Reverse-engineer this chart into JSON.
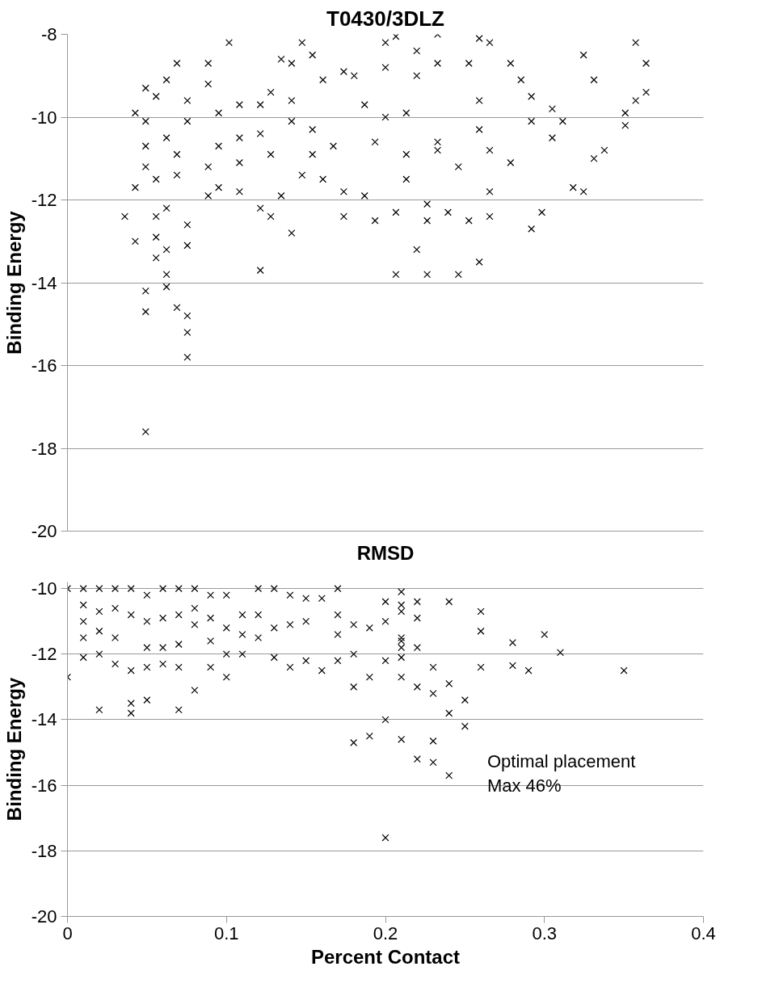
{
  "chart_data": [
    {
      "type": "scatter",
      "title": "T0430/3DLZ",
      "xlabel": "RMSD",
      "ylabel": "Binding Energy",
      "marker": "cross",
      "grid": "y",
      "tick_labels": "y",
      "ylim": [
        -20,
        -8
      ],
      "yticks": [
        -20,
        -18,
        -16,
        -14,
        -12,
        -10,
        -8
      ],
      "categories": [
        null,
        null,
        null,
        null,
        null,
        null,
        null,
        null,
        null,
        null,
        null,
        null,
        null,
        null,
        null,
        null,
        null,
        null,
        null,
        null,
        null,
        null,
        null,
        null,
        null,
        null,
        null,
        null,
        null,
        null,
        null,
        null,
        null,
        null,
        null,
        null,
        null,
        null,
        null,
        null,
        null,
        null,
        null,
        null,
        null,
        null,
        null,
        null,
        null,
        null,
        null,
        null,
        null,
        null,
        null,
        null,
        null,
        null,
        null,
        null,
        null
      ],
      "series": [
        {
          "color": "#000000",
          "values": [
            null,
            null,
            null,
            null,
            null,
            -12.4,
            -9.9,
            -9.3,
            -13.4,
            -14.1,
            -14.6,
            -14.8,
            null,
            -9.2,
            -10.7,
            -8.2,
            -10.5,
            null,
            -12.2,
            -12.4,
            -8.6,
            -8.7,
            -8.2,
            -8.5,
            -9.1,
            -10.7,
            -11.8,
            -9.0,
            -9.7,
            -10.6,
            -8.2,
            -8.05,
            -10.9,
            -8.4,
            -13.8,
            -8.0,
            -12.3,
            -13.8,
            -8.7,
            -8.1,
            -8.2,
            null,
            -8.7,
            -9.1,
            -9.5,
            -12.3,
            -9.8,
            -10.1,
            -11.7,
            -8.5,
            -9.1,
            -10.8,
            null,
            -10.2,
            -9.6,
            -8.7,
            null,
            null,
            null,
            null,
            null
          ]
        },
        {
          "color": "#000000",
          "values": [
            null,
            null,
            null,
            null,
            null,
            null,
            -11.7,
            -17.6,
            -12.9,
            -13.8,
            -10.9,
            -15.8,
            null,
            -11.2,
            -11.7,
            null,
            -11.1,
            null,
            -13.7,
            -9.4,
            -11.9,
            -12.8,
            -11.4,
            -10.3,
            -11.5,
            null,
            -12.4,
            null,
            -11.9,
            -12.5,
            -8.8,
            -12.3,
            -11.5,
            -13.2,
            -12.1,
            -8.7,
            null,
            -11.2,
            -12.5,
            -13.5,
            -11.8,
            null,
            -11.1,
            null,
            -10.1,
            null,
            -10.5,
            null,
            null,
            -11.8,
            -11.0,
            null,
            null,
            -9.9,
            -8.2,
            -9.4,
            null,
            null,
            null,
            null,
            null
          ]
        },
        {
          "color": "#000000",
          "values": [
            null,
            null,
            null,
            null,
            null,
            null,
            -13.0,
            -14.7,
            -11.5,
            -13.2,
            -11.4,
            -12.6,
            null,
            -11.9,
            -9.9,
            null,
            -11.8,
            null,
            -10.4,
            -10.9,
            null,
            -9.6,
            null,
            -10.9,
            null,
            null,
            -8.9,
            null,
            null,
            null,
            -10.0,
            -13.8,
            -9.9,
            -9.0,
            -12.5,
            -10.6,
            null,
            null,
            null,
            -9.6,
            -12.4,
            null,
            null,
            null,
            -12.7,
            null,
            null,
            null,
            null,
            null,
            null,
            null,
            null,
            null,
            null,
            null,
            null,
            null,
            null,
            null,
            null
          ]
        },
        {
          "color": "#000000",
          "values": [
            null,
            null,
            null,
            null,
            null,
            null,
            null,
            -14.2,
            -12.4,
            -12.2,
            -8.7,
            -13.1,
            null,
            -8.7,
            null,
            null,
            -9.7,
            null,
            -9.7,
            null,
            null,
            -10.1,
            null,
            null,
            null,
            null,
            null,
            null,
            null,
            null,
            null,
            null,
            null,
            null,
            null,
            -10.8,
            null,
            null,
            null,
            -10.3,
            -10.8,
            null,
            null,
            null,
            null,
            null,
            null,
            null,
            null,
            null,
            null,
            null,
            null,
            null,
            null,
            null,
            null,
            null,
            null,
            null,
            null
          ]
        },
        {
          "color": "#000000",
          "values": [
            null,
            null,
            null,
            null,
            null,
            null,
            null,
            -10.1,
            -9.5,
            -10.5,
            null,
            -9.6,
            null,
            null,
            null,
            null,
            null,
            null,
            null,
            null,
            null,
            null,
            null,
            null,
            null,
            null,
            null,
            null,
            null,
            null,
            null,
            null,
            null,
            null,
            null,
            null,
            null,
            null,
            null,
            null,
            null,
            null,
            null,
            null,
            null,
            null,
            null,
            null,
            null,
            null,
            null,
            null,
            null,
            null,
            null,
            null,
            null,
            null,
            null,
            null,
            null
          ]
        },
        {
          "color": "#000000",
          "values": [
            null,
            null,
            null,
            null,
            null,
            null,
            null,
            -10.7,
            null,
            -9.1,
            null,
            -15.2,
            null,
            null,
            null,
            null,
            null,
            null,
            null,
            null,
            null,
            null,
            null,
            null,
            null,
            null,
            null,
            null,
            null,
            null,
            null,
            null,
            null,
            null,
            null,
            null,
            null,
            null,
            null,
            null,
            null,
            null,
            null,
            null,
            null,
            null,
            null,
            null,
            null,
            null,
            null,
            null,
            null,
            null,
            null,
            null,
            null,
            null,
            null,
            null,
            null
          ]
        },
        {
          "color": "#000000",
          "values": [
            null,
            null,
            null,
            null,
            null,
            null,
            null,
            -11.2,
            null,
            null,
            null,
            -10.1,
            null,
            null,
            null,
            null,
            null,
            null,
            null,
            null,
            null,
            null,
            null,
            null,
            null,
            null,
            null,
            null,
            null,
            null,
            null,
            null,
            null,
            null,
            null,
            null,
            null,
            null,
            null,
            null,
            null,
            null,
            null,
            null,
            null,
            null,
            null,
            null,
            null,
            null,
            null,
            null,
            null,
            null,
            null,
            null,
            null,
            null,
            null,
            null,
            null
          ]
        }
      ]
    },
    {
      "type": "scatter",
      "xlabel": "Percent Contact",
      "ylabel": "Binding Energy",
      "marker": "cross",
      "grid": "y",
      "xlim": [
        0,
        0.4
      ],
      "xticks": [
        0,
        0.1,
        0.2,
        0.3,
        0.4
      ],
      "ylim": [
        -20,
        -9.8
      ],
      "yticks": [
        -20,
        -18,
        -16,
        -14,
        -12,
        -10
      ],
      "annotations": [
        "Optimal placement\nMax 46%"
      ],
      "series": [
        {
          "color": "#000000",
          "x": [
            0,
            0,
            0.01,
            0.01,
            0.01,
            0.01,
            0.01,
            0.02,
            0.02,
            0.02,
            0.02,
            0.02,
            0.03,
            0.03,
            0.03,
            0.03,
            0.04,
            0.04,
            0.04,
            0.04,
            0.04,
            0.05,
            0.05,
            0.05,
            0.05,
            0.05,
            0.06,
            0.06,
            0.06,
            0.06,
            0.07,
            0.07,
            0.07,
            0.07,
            0.07,
            0.08,
            0.08,
            0.08,
            0.08,
            0.09,
            0.09,
            0.09,
            0.09,
            0.1,
            0.1,
            0.1,
            0.1,
            0.11,
            0.11,
            0.11,
            0.12,
            0.12,
            0.12,
            0.13,
            0.13,
            0.13,
            0.14,
            0.14,
            0.14,
            0.15,
            0.15,
            0.15,
            0.16,
            0.16,
            0.17,
            0.17,
            0.17,
            0.17,
            0.18,
            0.18,
            0.18,
            0.18,
            0.19,
            0.19,
            0.19,
            0.2,
            0.2,
            0.2,
            0.2,
            0.2,
            0.21,
            0.21,
            0.21,
            0.21,
            0.21,
            0.21,
            0.21,
            0.21,
            0.21,
            0.22,
            0.22,
            0.22,
            0.22,
            0.22,
            0.23,
            0.23,
            0.23,
            0.23,
            0.24,
            0.24,
            0.24,
            0.24,
            0.25,
            0.25,
            0.26,
            0.26,
            0.26,
            0.28,
            0.28,
            0.29,
            0.3,
            0.31,
            0.35
          ],
          "values": [
            -10.0,
            -12.7,
            -10.0,
            -10.5,
            -11.0,
            -11.5,
            -12.1,
            -10.0,
            -10.7,
            -11.3,
            -12.0,
            -13.7,
            -10.0,
            -10.6,
            -11.5,
            -12.3,
            -10.0,
            -10.8,
            -12.5,
            -13.5,
            -13.8,
            -10.2,
            -11.0,
            -11.8,
            -12.4,
            -13.4,
            -10.0,
            -10.9,
            -11.8,
            -12.3,
            -10.0,
            -10.8,
            -11.7,
            -12.4,
            -13.7,
            -10.0,
            -10.6,
            -11.1,
            -13.1,
            -10.2,
            -10.9,
            -11.6,
            -12.4,
            -10.2,
            -11.2,
            -12.0,
            -12.7,
            -10.8,
            -11.4,
            -12.0,
            -10.0,
            -10.8,
            -11.5,
            -10.0,
            -11.2,
            -12.1,
            -10.2,
            -11.1,
            -12.4,
            -10.3,
            -11.0,
            -12.2,
            -10.3,
            -12.5,
            -10.0,
            -10.8,
            -11.4,
            -12.2,
            -11.1,
            -12.0,
            -13.0,
            -14.7,
            -11.2,
            -12.7,
            -14.5,
            -10.4,
            -11.0,
            -12.2,
            -14.0,
            -17.6,
            -10.1,
            -10.7,
            -11.5,
            -12.1,
            -14.6,
            -10.5,
            -11.6,
            -11.8,
            -12.7,
            -10.4,
            -10.9,
            -11.8,
            -13.0,
            -15.2,
            -12.4,
            -13.2,
            -14.65,
            -15.3,
            -10.4,
            -12.9,
            -13.8,
            -15.7,
            -13.4,
            -14.2,
            -10.7,
            -11.3,
            -12.4,
            -11.65,
            -12.35,
            -12.5,
            -11.4,
            -11.95,
            -12.5
          ]
        }
      ]
    }
  ]
}
